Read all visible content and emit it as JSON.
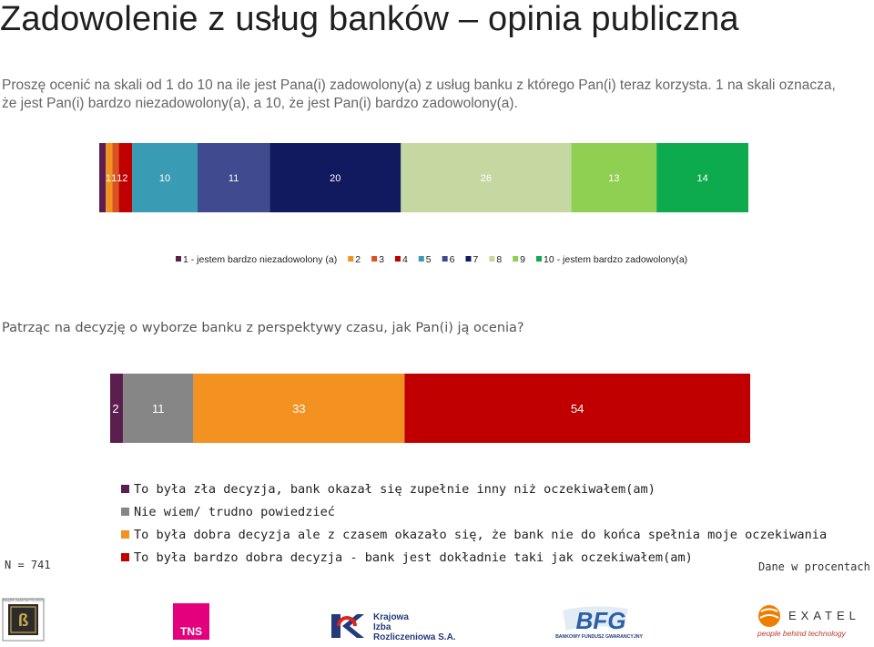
{
  "page": {
    "title": "Zadowolenie z usług banków – opinia publiczna",
    "question1": "Proszę ocenić na skali od 1 do 10 na ile jest Pana(i) zadowolony(a) z usług banku z którego Pan(i) teraz korzysta. 1 na skali oznacza, że jest Pan(i) bardzo niezadowolony(a), a 10, że jest Pan(i) bardzo zadowolony(a).",
    "question2": "Patrząc na decyzję o wyborze banku z perspektywy czasu, jak Pan(i) ją ocenia?",
    "sample": "N = 741",
    "unit_note": "Dane w procentach"
  },
  "chart_data": [
    {
      "type": "bar",
      "orientation": "horizontal-stacked-100",
      "series": [
        {
          "name": "1 - jestem bardzo niezadowolony (a)",
          "value": 1,
          "color": "#5b1f4f"
        },
        {
          "name": "2",
          "value": 1,
          "color": "#f39220"
        },
        {
          "name": "3",
          "value": 1,
          "color": "#d9531e"
        },
        {
          "name": "4",
          "value": 2,
          "color": "#c00000"
        },
        {
          "name": "5",
          "value": 10,
          "color": "#3a9bb5"
        },
        {
          "name": "6",
          "value": 11,
          "color": "#3f4a8f"
        },
        {
          "name": "7",
          "value": 20,
          "color": "#111a5e"
        },
        {
          "name": "8",
          "value": 26,
          "color": "#c5d8a1"
        },
        {
          "name": "9",
          "value": 13,
          "color": "#8fcf52"
        },
        {
          "name": "10 - jestem bardzo zadowolony(a)",
          "value": 14,
          "color": "#0dab4e"
        }
      ],
      "data_labels": [
        "1",
        "1",
        "1",
        "2",
        "10",
        "11",
        "20",
        "26",
        "13",
        "14"
      ],
      "legend_position": "bottom"
    },
    {
      "type": "bar",
      "orientation": "horizontal-stacked-100",
      "series": [
        {
          "name": "To była zła decyzja, bank okazał się zupełnie inny niż oczekiwałem(am)",
          "value": 2,
          "color": "#5b1f4f"
        },
        {
          "name": "Nie wiem/ trudno powiedzieć",
          "value": 11,
          "color": "#868686"
        },
        {
          "name": "To była dobra decyzja ale z czasem okazało się, że bank nie do końca spełnia moje oczekiwania",
          "value": 33,
          "color": "#f39220"
        },
        {
          "name": "To była bardzo dobra decyzja - bank jest dokładnie taki jak oczekiwałem(am)",
          "value": 54,
          "color": "#c00000"
        }
      ],
      "data_labels": [
        "2",
        "11",
        "33",
        "54"
      ],
      "legend_position": "bottom"
    }
  ],
  "logos": {
    "tns": "TNS",
    "kir": [
      "Krajowa",
      "Izba",
      "Rozliczeniowa S.A."
    ],
    "bfg": "BFG",
    "bfg_caption": "BANKOWY FUNDUSZ GWARANCYJNY",
    "exatel": "EXATEL",
    "exatel_tagline": "people behind technology",
    "zbp_caption": "ZWIĄZEK BANKÓW POLSKICH"
  }
}
